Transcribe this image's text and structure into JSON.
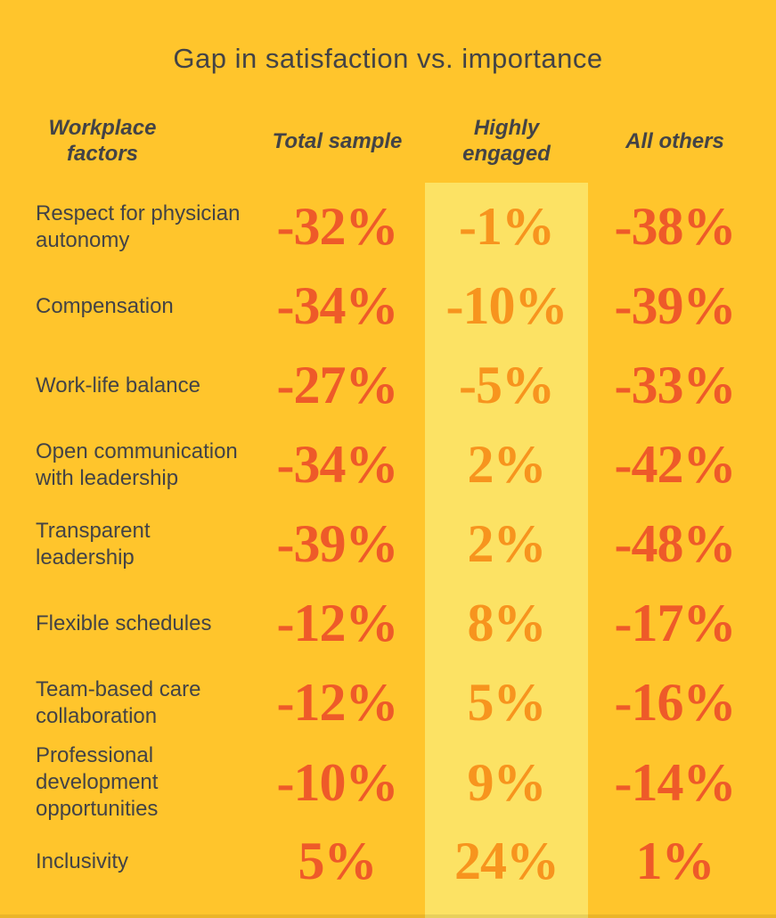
{
  "title": "Gap in satisfaction vs. importance",
  "colors": {
    "background": "#FFC52C",
    "highlight_column": "#FCE264",
    "heading_text": "#434346",
    "value_default": "#EE5A29",
    "value_highlight": "#F7941E"
  },
  "table": {
    "headers": {
      "factors": "Workplace factors",
      "total": "Total sample",
      "engaged": "Highly engaged",
      "others": "All others"
    }
  },
  "chart_data": {
    "type": "table",
    "title": "Gap in satisfaction vs. importance",
    "row_header": "Workplace factors",
    "columns": [
      "Total sample",
      "Highly engaged",
      "All others"
    ],
    "highlighted_column": "Highly engaged",
    "rows": [
      {
        "factor": "Respect for physician autonomy",
        "values": [
          "-32%",
          "-1%",
          "-38%"
        ]
      },
      {
        "factor": "Compensation",
        "values": [
          "-34%",
          "-10%",
          "-39%"
        ]
      },
      {
        "factor": "Work-life balance",
        "values": [
          "-27%",
          "-5%",
          "-33%"
        ]
      },
      {
        "factor": "Open communication with leadership",
        "values": [
          "-34%",
          "2%",
          "-42%"
        ]
      },
      {
        "factor": "Transparent leadership",
        "values": [
          "-39%",
          "2%",
          "-48%"
        ]
      },
      {
        "factor": "Flexible schedules",
        "values": [
          "-12%",
          "8%",
          "-17%"
        ]
      },
      {
        "factor": "Team-based care collaboration",
        "values": [
          "-12%",
          "5%",
          "-16%"
        ]
      },
      {
        "factor": "Professional development opportunities",
        "values": [
          "-10%",
          "9%",
          "-14%"
        ]
      },
      {
        "factor": "Inclusivity",
        "values": [
          "5%",
          "24%",
          "1%"
        ]
      }
    ]
  }
}
